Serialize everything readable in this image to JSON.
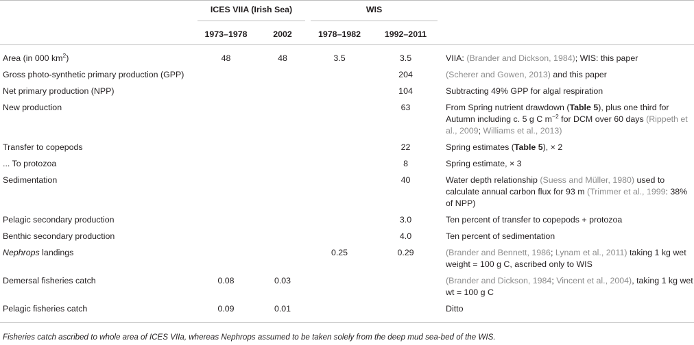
{
  "table": {
    "group_headers": [
      "ICES VIIA (Irish Sea)",
      "WIS"
    ],
    "col_headers": [
      "1973–1978",
      "2002",
      "1978–1982",
      "1992–2011"
    ],
    "rows": [
      {
        "label_a": "Area (in 000 km",
        "label_sup": "2",
        "label_b": ")",
        "v": [
          "48",
          "48",
          "3.5",
          "3.5"
        ],
        "src": {
          "p1": "VIIA: ",
          "c1": "(Brander and Dickson, 1984)",
          "p2": "; WIS: this paper"
        }
      },
      {
        "label": "Gross photo-synthetic primary production (GPP)",
        "v": [
          "",
          "",
          "",
          "204"
        ],
        "src": {
          "c1": "(Scherer and Gowen, 2013)",
          "p2": " and this paper"
        }
      },
      {
        "label": "Net primary production (NPP)",
        "v": [
          "",
          "",
          "",
          "104"
        ],
        "src": {
          "p1": "Subtracting 49% GPP for algal respiration"
        }
      },
      {
        "label": "New production",
        "v": [
          "",
          "",
          "",
          "63"
        ],
        "src": {
          "p1": "From Spring nutrient drawdown (",
          "b1": "Table 5",
          "p2": "), plus one third for Autumn including c. 5 g C m",
          "sup": "−2",
          "p3": " for DCM over 60 days ",
          "c1": "(Rippeth et al., 2009",
          "p4": "; ",
          "c2": "Williams et al., 2013)"
        }
      },
      {
        "label": "Transfer to copepods",
        "v": [
          "",
          "",
          "",
          "22"
        ],
        "src": {
          "p1": "Spring estimates (",
          "b1": "Table 5",
          "p2": "), × 2"
        }
      },
      {
        "label": "... To protozoa",
        "v": [
          "",
          "",
          "",
          "8"
        ],
        "src": {
          "p1": "Spring estimate, × 3"
        }
      },
      {
        "label": "Sedimentation",
        "v": [
          "",
          "",
          "",
          "40"
        ],
        "src": {
          "p1": "Water depth relationship ",
          "c1": "(Suess and Müller, 1980)",
          "p2": " used to calculate annual carbon flux for 93 m ",
          "c2": "(Trimmer et al., 1999",
          "p3": ": 38% of NPP)"
        }
      },
      {
        "label": "Pelagic secondary production",
        "v": [
          "",
          "",
          "",
          "3.0"
        ],
        "src": {
          "p1": "Ten percent of transfer to copepods + protozoa"
        }
      },
      {
        "label": "Benthic secondary production",
        "v": [
          "",
          "",
          "",
          "4.0"
        ],
        "src": {
          "p1": "Ten percent of sedimentation"
        }
      },
      {
        "label_it": "Nephrops",
        "label": " landings",
        "v": [
          "",
          "",
          "0.25",
          "0.29"
        ],
        "src": {
          "c1": "(Brander and Bennett, 1986",
          "p1": "; ",
          "c2": "Lynam et al., 2011)",
          "p2": " taking 1 kg wet weight = 100 g C, ascribed only to WIS"
        }
      },
      {
        "label": "Demersal fisheries catch",
        "v": [
          "0.08",
          "0.03",
          "",
          ""
        ],
        "src": {
          "c1": "(Brander and Dickson, 1984",
          "p1": "; ",
          "c2": "Vincent et al., 2004)",
          "p2": ", taking 1 kg wet wt = 100 g C"
        }
      },
      {
        "label": "Pelagic fisheries catch",
        "v": [
          "0.09",
          "0.01",
          "",
          ""
        ],
        "src": {
          "p1": "Ditto"
        }
      }
    ]
  },
  "footnote": "Fisheries catch ascribed to whole area of ICES VIIa, whereas Nephrops assumed to be taken solely from the deep mud sea-bed of the WIS."
}
